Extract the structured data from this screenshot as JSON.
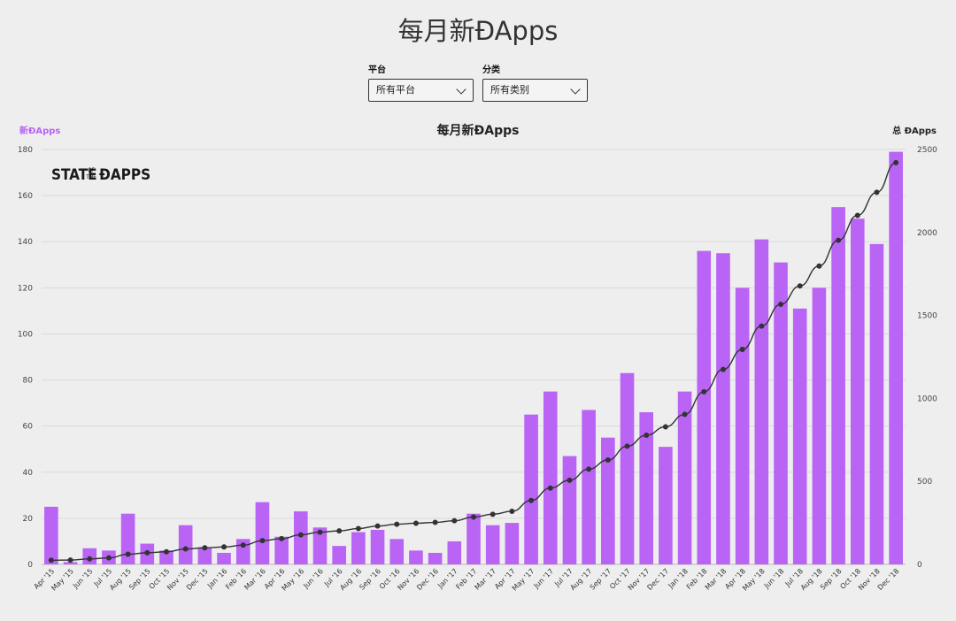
{
  "header": {
    "title": "每月新ĐApps"
  },
  "filters": [
    {
      "label": "平台",
      "value": "所有平台"
    },
    {
      "label": "分类",
      "value": "所有类别"
    }
  ],
  "chart_data": {
    "type": "bar",
    "title": "每月新ĐApps",
    "y_left_label": "新ĐApps",
    "y_right_label": "总 ĐApps",
    "watermark": "STATE OF THE ĐAPPS",
    "categories": [
      "Apr '15",
      "May '15",
      "Jun '15",
      "Jul '15",
      "Aug '15",
      "Sep '15",
      "Oct '15",
      "Nov '15",
      "Dec '15",
      "Jan '16",
      "Feb '16",
      "Mar '16",
      "Apr '16",
      "May '16",
      "Jun '16",
      "Jul '16",
      "Aug '16",
      "Sep '16",
      "Oct '16",
      "Nov '16",
      "Dec '16",
      "Jan '17",
      "Feb '17",
      "Mar '17",
      "Apr '17",
      "May '17",
      "Jun '17",
      "Jul '17",
      "Aug '17",
      "Sep '17",
      "Oct '17",
      "Nov '17",
      "Dec '17",
      "Jan '18",
      "Feb '18",
      "Mar '18",
      "Apr '18",
      "May '18",
      "Jun '18",
      "Jul '18",
      "Aug '18",
      "Sep '18",
      "Oct '18",
      "Nov '18",
      "Dec '18"
    ],
    "series": [
      {
        "name": "新ĐApps",
        "type": "bar",
        "axis": "left",
        "color": "#b964f5",
        "values": [
          25,
          1,
          7,
          6,
          22,
          9,
          6,
          17,
          7,
          5,
          11,
          27,
          12,
          23,
          16,
          8,
          14,
          15,
          11,
          6,
          5,
          10,
          22,
          17,
          18,
          65,
          75,
          47,
          67,
          55,
          83,
          66,
          51,
          75,
          136,
          135,
          120,
          141,
          131,
          111,
          120,
          155,
          150,
          139,
          179
        ]
      },
      {
        "name": "总 ĐApps",
        "type": "line",
        "axis": "right",
        "color": "#333333",
        "values": [
          25,
          26,
          33,
          39,
          61,
          70,
          76,
          93,
          100,
          105,
          116,
          143,
          155,
          178,
          194,
          202,
          216,
          231,
          242,
          248,
          253,
          263,
          285,
          302,
          320,
          385,
          460,
          507,
          574,
          629,
          712,
          778,
          829,
          904,
          1040,
          1175,
          1295,
          1436,
          1567,
          1678,
          1798,
          1953,
          2103,
          2242,
          2421
        ]
      }
    ],
    "y_left_ticks": [
      0,
      20,
      40,
      60,
      80,
      100,
      120,
      140,
      160,
      180
    ],
    "y_right_ticks": [
      0,
      500,
      1000,
      1500,
      2000,
      2500
    ],
    "ylim_left": [
      0,
      180
    ],
    "ylim_right": [
      0,
      2500
    ],
    "grid": true
  }
}
